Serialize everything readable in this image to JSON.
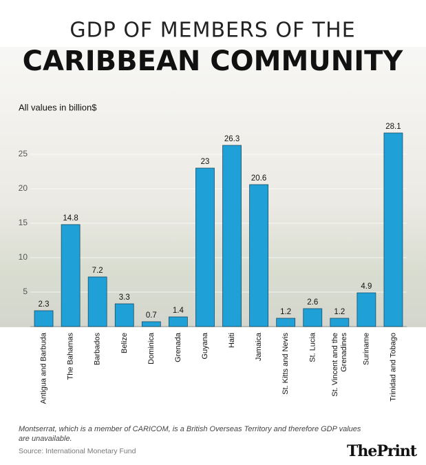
{
  "chart_data": {
    "type": "bar",
    "title_line1": "GDP OF MEMBERS OF THE",
    "title_line2": "CARIBBEAN COMMUNITY",
    "subtitle": "All values in billion$",
    "categories": [
      "Antigua and Barbuda",
      "The Bahamas",
      "Barbados",
      "Belize",
      "Dominica",
      "Grenada",
      "Guyana",
      "Haiti",
      "Jamaica",
      "St. Kitts and Nevis",
      "St. Lucia",
      "St. Vincent and the\nGrenadines",
      "Suriname",
      "Trinidad and Tobago"
    ],
    "values": [
      2.3,
      14.8,
      7.2,
      3.3,
      0.7,
      1.4,
      23,
      26.3,
      20.6,
      1.2,
      2.6,
      1.2,
      4.9,
      28.1
    ],
    "color": "#1fa0d6",
    "ylim": [
      0,
      30
    ],
    "yticks": [
      5,
      10,
      15,
      20,
      25
    ],
    "grid": true,
    "footnote": "Montserrat, which is a member of CARICOM, is a British Overseas Territory and therefore GDP values are unavailable.",
    "source": "Source: International Monetary Fund",
    "logo": "ThePrint"
  }
}
